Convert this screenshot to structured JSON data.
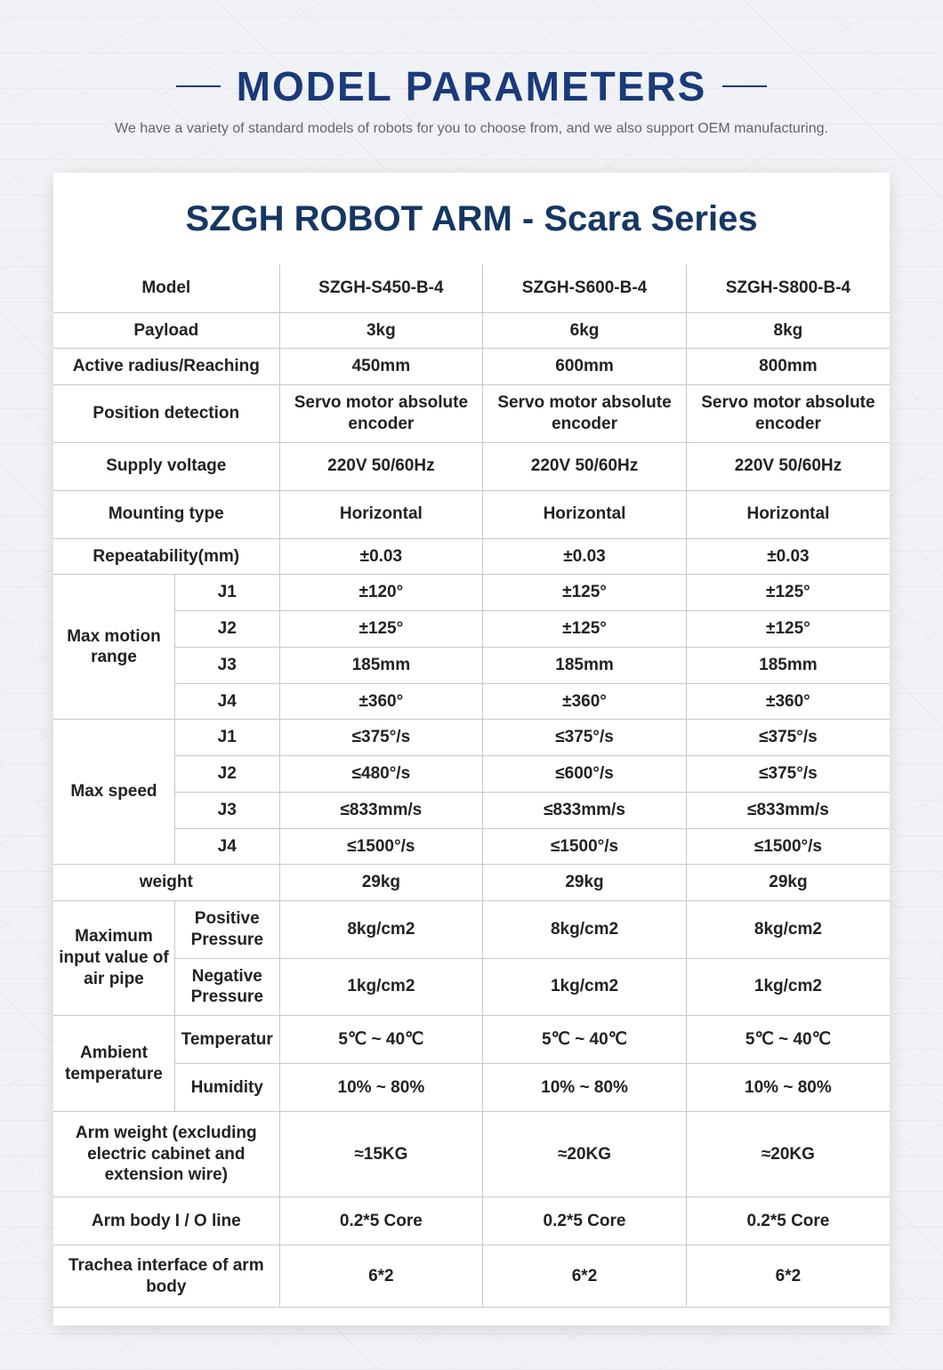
{
  "colors": {
    "title": "#1a3a7a",
    "card_title": "#163763",
    "subtitle": "#666666",
    "border": "#c9c9c9",
    "bg": "#f0f2f5",
    "card_bg": "#ffffff"
  },
  "header": {
    "title": "MODEL PARAMETERS",
    "subtitle": "We have a variety of standard models of robots for you to choose from, and we also support OEM manufacturing."
  },
  "card_title": "SZGH ROBOT ARM - Scara Series",
  "table": {
    "columns": [
      "SZGH-S450-B-4",
      "SZGH-S600-B-4",
      "SZGH-S800-B-4"
    ],
    "model_label": "Model",
    "rows_simple": [
      {
        "label": "Payload",
        "v": [
          "3kg",
          "6kg",
          "8kg"
        ]
      },
      {
        "label": "Active radius/Reaching",
        "v": [
          "450mm",
          "600mm",
          "800mm"
        ]
      },
      {
        "label": "Position detection",
        "v": [
          "Servo motor absolute encoder",
          "Servo motor absolute encoder",
          "Servo motor absolute encoder"
        ]
      },
      {
        "label": "Supply voltage",
        "v": [
          "220V 50/60Hz",
          "220V 50/60Hz",
          "220V 50/60Hz"
        ]
      },
      {
        "label": "Mounting type",
        "v": [
          "Horizontal",
          "Horizontal",
          "Horizontal"
        ]
      },
      {
        "label": "Repeatability(mm)",
        "v": [
          "±0.03",
          "±0.03",
          "±0.03"
        ]
      }
    ],
    "max_motion": {
      "label": "Max motion range",
      "sub": [
        {
          "k": "J1",
          "v": [
            "±120°",
            "±125°",
            "±125°"
          ]
        },
        {
          "k": "J2",
          "v": [
            "±125°",
            "±125°",
            "±125°"
          ]
        },
        {
          "k": "J3",
          "v": [
            "185mm",
            "185mm",
            "185mm"
          ]
        },
        {
          "k": "J4",
          "v": [
            "±360°",
            "±360°",
            "±360°"
          ]
        }
      ]
    },
    "max_speed": {
      "label": "Max speed",
      "sub": [
        {
          "k": "J1",
          "v": [
            "≤375°/s",
            "≤375°/s",
            "≤375°/s"
          ]
        },
        {
          "k": "J2",
          "v": [
            "≤480°/s",
            "≤600°/s",
            "≤375°/s"
          ]
        },
        {
          "k": "J3",
          "v": [
            "≤833mm/s",
            "≤833mm/s",
            "≤833mm/s"
          ]
        },
        {
          "k": "J4",
          "v": [
            "≤1500°/s",
            "≤1500°/s",
            "≤1500°/s"
          ]
        }
      ]
    },
    "weight": {
      "label": "weight",
      "v": [
        "29kg",
        "29kg",
        "29kg"
      ]
    },
    "air_pipe": {
      "label": "Maximum input value of air pipe",
      "sub": [
        {
          "k": "Positive Pressure",
          "v": [
            "8kg/cm2",
            "8kg/cm2",
            "8kg/cm2"
          ]
        },
        {
          "k": "Negative Pressure",
          "v": [
            "1kg/cm2",
            "1kg/cm2",
            "1kg/cm2"
          ]
        }
      ]
    },
    "ambient": {
      "label": "Ambient temperature",
      "sub": [
        {
          "k": "Temperatur",
          "v": [
            "5℃ ~ 40℃",
            "5℃ ~ 40℃",
            "5℃ ~ 40℃"
          ]
        },
        {
          "k": "Humidity",
          "v": [
            "10% ~ 80%",
            "10% ~ 80%",
            "10% ~ 80%"
          ]
        }
      ]
    },
    "arm_weight": {
      "label": "Arm weight (excluding electric cabinet and extension wire)",
      "v": [
        "≈15KG",
        "≈20KG",
        "≈20KG"
      ]
    },
    "io_line": {
      "label": "Arm body I / O line",
      "v": [
        "0.2*5 Core",
        "0.2*5 Core",
        "0.2*5 Core"
      ]
    },
    "trachea": {
      "label": "Trachea interface of arm body",
      "v": [
        "6*2",
        "6*2",
        "6*2"
      ]
    }
  }
}
